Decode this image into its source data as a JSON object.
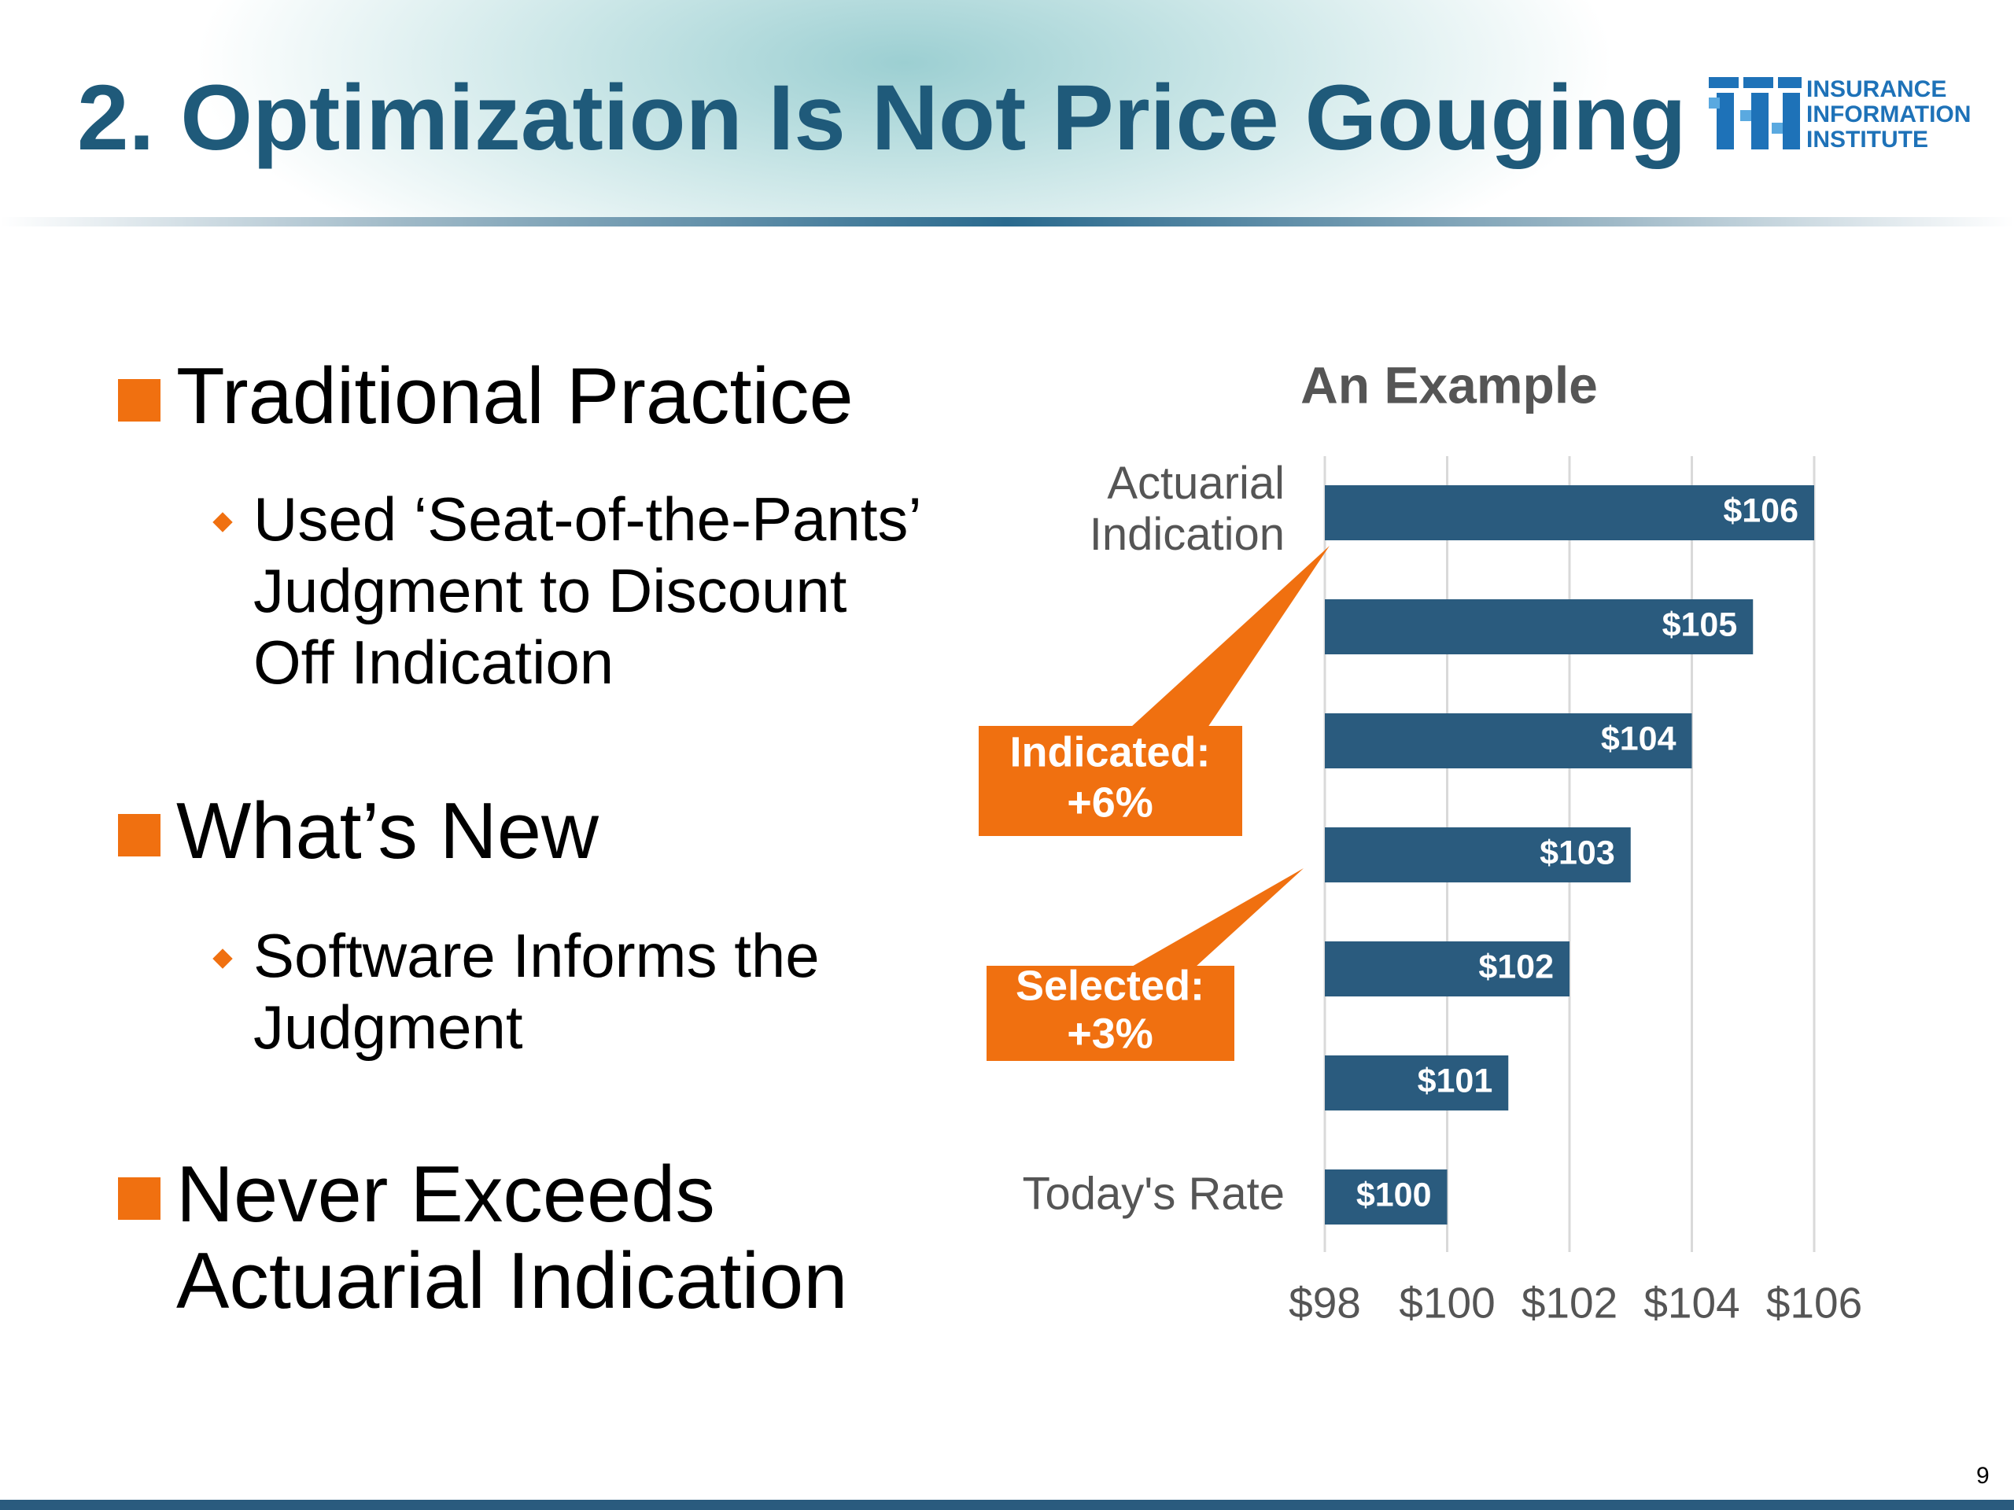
{
  "title": "2. Optimization Is Not Price Gouging",
  "logo": [
    "INSURANCE",
    "INFORMATION",
    "INSTITUTE"
  ],
  "bullets": [
    {
      "text": "Traditional Practice",
      "sub": [
        "Used ‘Seat-of-the-Pants’ Judgment to Discount Off Indication"
      ]
    },
    {
      "text": "What’s New",
      "sub": [
        "Software Informs the Judgment"
      ]
    },
    {
      "text": "Never Exceeds Actuarial Indication"
    }
  ],
  "page_number": "9",
  "chart_data": {
    "type": "bar",
    "orientation": "horizontal",
    "title": "An Example",
    "categories": [
      "Today's Rate",
      null,
      null,
      null,
      null,
      null,
      "Actuarial Indication"
    ],
    "values": [
      100,
      101,
      102,
      103,
      104,
      105,
      106
    ],
    "value_labels": [
      "$100",
      "$101",
      "$102",
      "$103",
      "$104",
      "$105",
      "$106"
    ],
    "color": "#2a5b7e",
    "xlim": [
      98,
      106
    ],
    "xticks": [
      {
        "value": 98,
        "label": "$98"
      },
      {
        "value": 100,
        "label": "$100"
      },
      {
        "value": 102,
        "label": "$102"
      },
      {
        "value": 104,
        "label": "$104"
      },
      {
        "value": 106,
        "label": "$106"
      }
    ],
    "grid": true,
    "annotations": [
      [
        "Indicated:",
        "+6%"
      ],
      [
        "Selected:",
        "+3%"
      ]
    ]
  }
}
